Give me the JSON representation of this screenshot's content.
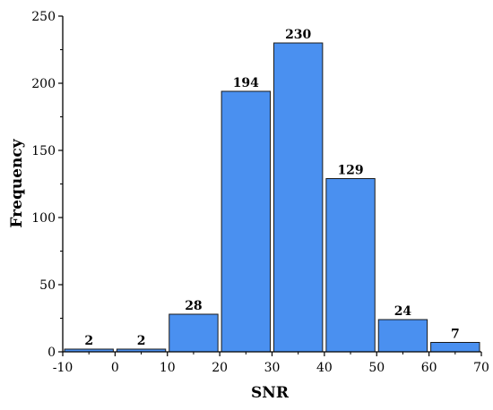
{
  "colors": {
    "bar_fill": "#4a90f0",
    "bar_stroke": "#1a1a1a",
    "axis": "#000000"
  },
  "chart_data": {
    "type": "bar",
    "title": "",
    "xlabel": "SNR",
    "ylabel": "Frequency",
    "bins": [
      {
        "start": -10,
        "end": 0,
        "value": 2
      },
      {
        "start": 0,
        "end": 10,
        "value": 2
      },
      {
        "start": 10,
        "end": 20,
        "value": 28
      },
      {
        "start": 20,
        "end": 30,
        "value": 194
      },
      {
        "start": 30,
        "end": 40,
        "value": 230
      },
      {
        "start": 40,
        "end": 50,
        "value": 129
      },
      {
        "start": 50,
        "end": 60,
        "value": 24
      },
      {
        "start": 60,
        "end": 70,
        "value": 7
      }
    ],
    "values": [
      2,
      2,
      28,
      194,
      230,
      129,
      24,
      7
    ],
    "data_labels": [
      "2",
      "2",
      "28",
      "194",
      "230",
      "129",
      "24",
      "7"
    ],
    "xlim": [
      -10,
      70
    ],
    "ylim": [
      0,
      250
    ],
    "x_ticks": [
      "-10",
      "0",
      "10",
      "20",
      "30",
      "40",
      "50",
      "60",
      "70"
    ],
    "y_ticks": [
      "0",
      "50",
      "100",
      "150",
      "200",
      "250"
    ],
    "grid": false,
    "legend": "none"
  }
}
